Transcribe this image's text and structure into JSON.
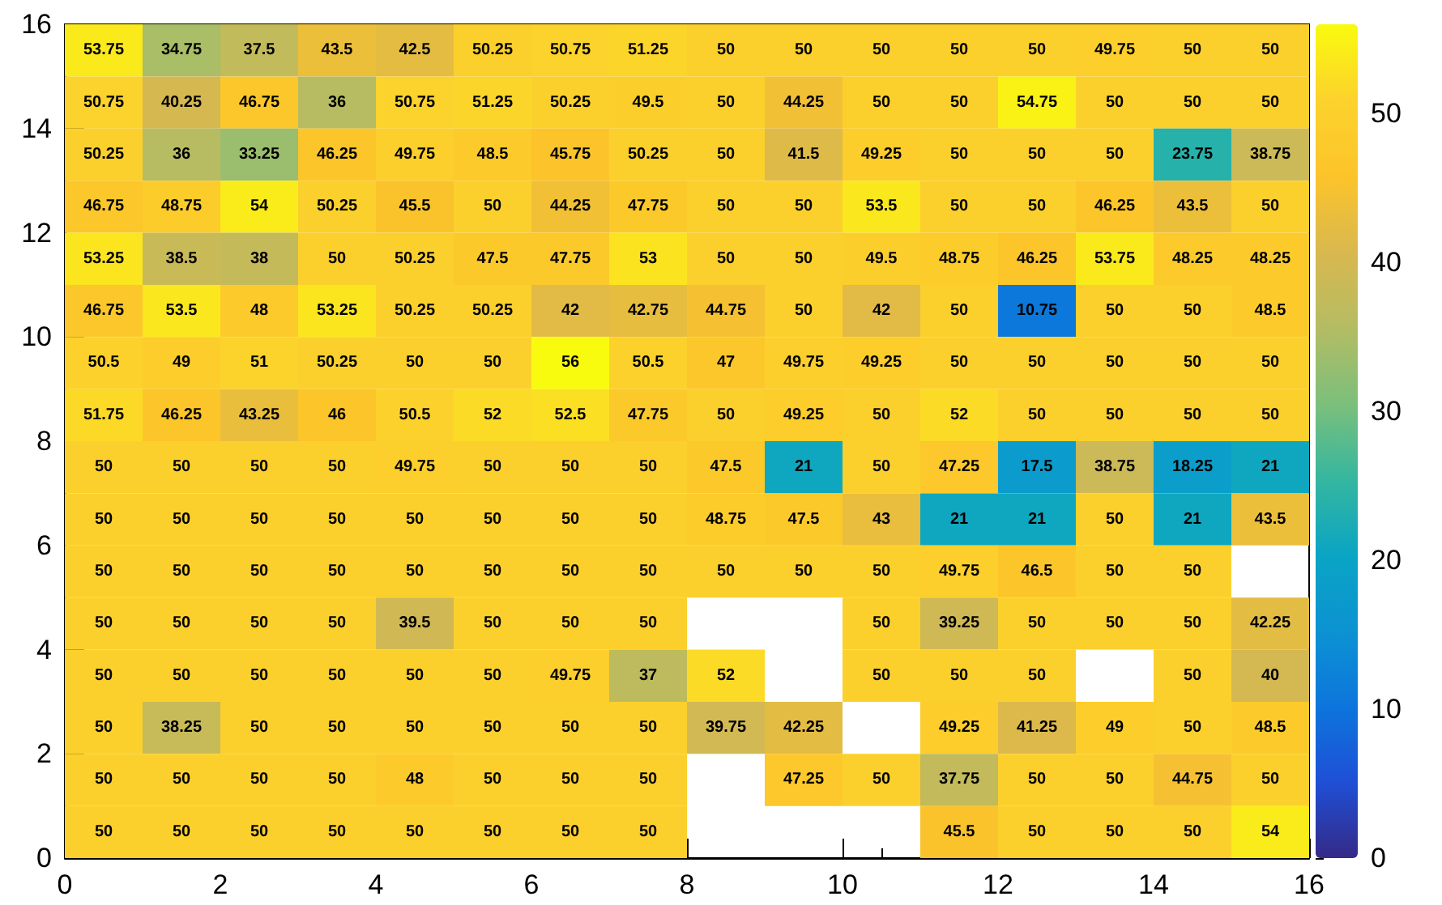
{
  "chart_data": {
    "type": "heatmap",
    "xlim": [
      0,
      16
    ],
    "xticks": [
      0,
      2,
      4,
      6,
      8,
      10,
      12,
      14,
      16
    ],
    "ylim": [
      0,
      16
    ],
    "yticks": [
      0,
      2,
      4,
      6,
      8,
      10,
      12,
      14,
      16
    ],
    "clim": [
      0,
      56
    ],
    "cticks": [
      0,
      10,
      20,
      30,
      40,
      50
    ],
    "data_labels": true,
    "cells": [
      [
        53.75,
        34.75,
        37.5,
        43.5,
        42.5,
        50.25,
        50.75,
        51.25,
        50,
        50,
        50,
        50,
        50,
        49.75,
        50,
        50
      ],
      [
        50.75,
        40.25,
        46.75,
        36,
        50.75,
        51.25,
        50.25,
        49.5,
        50,
        44.25,
        50,
        50,
        54.75,
        50,
        50,
        50
      ],
      [
        50.25,
        36,
        33.25,
        46.25,
        49.75,
        48.5,
        45.75,
        50.25,
        50,
        41.5,
        49.25,
        50,
        50,
        50,
        23.75,
        38.75
      ],
      [
        46.75,
        48.75,
        54,
        50.25,
        45.5,
        50,
        44.25,
        47.75,
        50,
        50,
        53.5,
        50,
        50,
        46.25,
        43.5,
        50
      ],
      [
        53.25,
        38.5,
        38,
        50,
        50.25,
        47.5,
        47.75,
        53,
        50,
        50,
        49.5,
        48.75,
        46.25,
        53.75,
        48.25,
        48.25
      ],
      [
        46.75,
        53.5,
        48,
        53.25,
        50.25,
        50.25,
        42,
        42.75,
        44.75,
        50,
        42,
        50,
        10.75,
        50,
        50,
        48.5
      ],
      [
        50.5,
        49,
        51,
        50.25,
        50,
        50,
        56,
        50.5,
        47,
        49.75,
        49.25,
        50,
        50,
        50,
        50,
        50
      ],
      [
        51.75,
        46.25,
        43.25,
        46,
        50.5,
        52,
        52.5,
        47.75,
        50,
        49.25,
        50,
        52,
        50,
        50,
        50,
        50
      ],
      [
        50,
        50,
        50,
        50,
        49.75,
        50,
        50,
        50,
        47.5,
        21,
        50,
        47.25,
        17.5,
        38.75,
        18.25,
        21
      ],
      [
        50,
        50,
        50,
        50,
        50,
        50,
        50,
        50,
        48.75,
        47.5,
        43,
        21,
        21,
        50,
        21,
        43.5
      ],
      [
        50,
        50,
        50,
        50,
        50,
        50,
        50,
        50,
        50,
        50,
        50,
        49.75,
        46.5,
        50,
        50,
        null
      ],
      [
        50,
        50,
        50,
        50,
        39.5,
        50,
        50,
        50,
        null,
        null,
        50,
        39.25,
        50,
        50,
        50,
        42.25
      ],
      [
        50,
        50,
        50,
        50,
        50,
        50,
        49.75,
        37,
        52,
        null,
        50,
        50,
        50,
        null,
        50,
        40
      ],
      [
        50,
        38.25,
        50,
        50,
        50,
        50,
        50,
        50,
        39.75,
        42.25,
        null,
        49.25,
        41.25,
        49,
        50,
        48.5
      ],
      [
        50,
        50,
        50,
        50,
        48,
        50,
        50,
        50,
        null,
        47.25,
        50,
        37.75,
        50,
        50,
        44.75,
        50
      ],
      [
        50,
        50,
        50,
        50,
        50,
        50,
        50,
        50,
        null,
        null,
        null,
        45.5,
        50,
        50,
        50,
        54
      ]
    ]
  }
}
